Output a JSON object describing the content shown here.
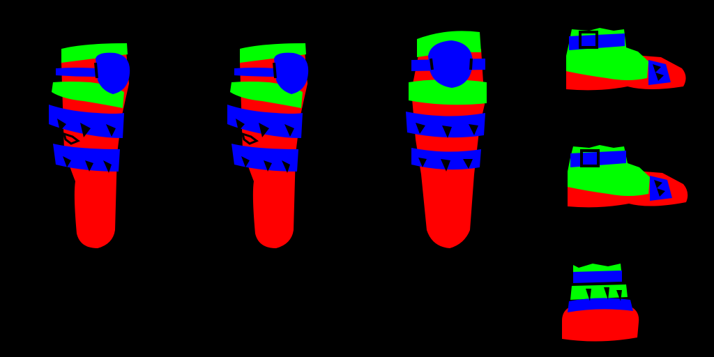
{
  "canvas": {
    "background": "#000000"
  },
  "palette": {
    "red": "#ff0000",
    "green": "#00ff00",
    "blue": "#0000ff",
    "black": "#000000"
  },
  "parts": [
    {
      "name": "leg-guard-left-angled",
      "kind": "leg-guard"
    },
    {
      "name": "leg-guard-right-angled",
      "kind": "leg-guard"
    },
    {
      "name": "leg-guard-front",
      "kind": "leg-guard"
    },
    {
      "name": "boot-side-top",
      "kind": "boot"
    },
    {
      "name": "boot-side-middle",
      "kind": "boot"
    },
    {
      "name": "boot-front",
      "kind": "boot"
    }
  ]
}
